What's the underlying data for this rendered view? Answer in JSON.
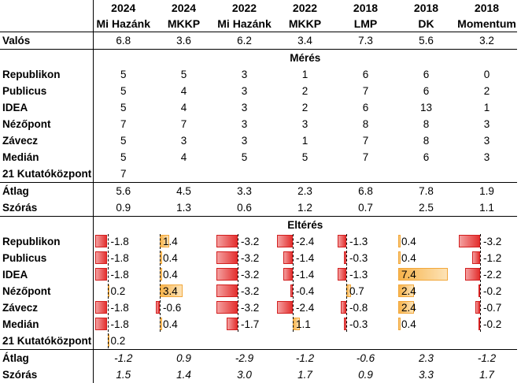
{
  "columns": [
    {
      "year": "2024",
      "party": "Mi Hazánk"
    },
    {
      "year": "2024",
      "party": "MKKP"
    },
    {
      "year": "2022",
      "party": "Mi Hazánk"
    },
    {
      "year": "2022",
      "party": "MKKP"
    },
    {
      "year": "2018",
      "party": "LMP"
    },
    {
      "year": "2018",
      "party": "DK"
    },
    {
      "year": "2018",
      "party": "Momentum"
    }
  ],
  "actual": {
    "label": "Valós",
    "values": [
      "6.8",
      "3.6",
      "6.2",
      "3.4",
      "7.3",
      "5.6",
      "3.2"
    ]
  },
  "measure_section": {
    "title": "Mérés",
    "rows": [
      {
        "label": "Republikon",
        "values": [
          "5",
          "5",
          "3",
          "1",
          "6",
          "6",
          "0"
        ]
      },
      {
        "label": "Publicus",
        "values": [
          "5",
          "4",
          "3",
          "2",
          "7",
          "6",
          "2"
        ]
      },
      {
        "label": "IDEA",
        "values": [
          "5",
          "4",
          "3",
          "2",
          "6",
          "13",
          "1"
        ]
      },
      {
        "label": "Nézőpont",
        "values": [
          "7",
          "7",
          "3",
          "3",
          "8",
          "8",
          "3"
        ]
      },
      {
        "label": "Závecz",
        "values": [
          "5",
          "3",
          "3",
          "1",
          "7",
          "8",
          "3"
        ]
      },
      {
        "label": "Medián",
        "values": [
          "5",
          "4",
          "5",
          "5",
          "7",
          "6",
          "3"
        ]
      },
      {
        "label": "21 Kutatóközpont",
        "values": [
          "7",
          "",
          "",
          "",
          "",
          "",
          ""
        ]
      }
    ],
    "mean": {
      "label": "Átlag",
      "values": [
        "5.6",
        "4.5",
        "3.3",
        "2.3",
        "6.8",
        "7.8",
        "1.9"
      ]
    },
    "std": {
      "label": "Szórás",
      "values": [
        "0.9",
        "1.3",
        "0.6",
        "1.2",
        "0.7",
        "2.5",
        "1.1"
      ]
    }
  },
  "deviation_section": {
    "title": "Eltérés",
    "rows": [
      {
        "label": "Republikon",
        "values": [
          "-1.8",
          "1.4",
          "-3.2",
          "-2.4",
          "-1.3",
          "0.4",
          "-3.2"
        ]
      },
      {
        "label": "Publicus",
        "values": [
          "-1.8",
          "0.4",
          "-3.2",
          "-1.4",
          "-0.3",
          "0.4",
          "-1.2"
        ]
      },
      {
        "label": "IDEA",
        "values": [
          "-1.8",
          "0.4",
          "-3.2",
          "-1.4",
          "-1.3",
          "7.4",
          "-2.2"
        ]
      },
      {
        "label": "Nézőpont",
        "values": [
          "0.2",
          "3.4",
          "-3.2",
          "-0.4",
          "0.7",
          "2.4",
          "-0.2"
        ]
      },
      {
        "label": "Závecz",
        "values": [
          "-1.8",
          "-0.6",
          "-3.2",
          "-2.4",
          "-0.8",
          "2.4",
          "-0.7"
        ]
      },
      {
        "label": "Medián",
        "values": [
          "-1.8",
          "0.4",
          "-1.7",
          "1.1",
          "-0.3",
          "0.4",
          "-0.2"
        ]
      },
      {
        "label": "21 Kutatóközpont",
        "values": [
          "0.2",
          "",
          "",
          "",
          "",
          "",
          ""
        ]
      }
    ],
    "mean": {
      "label": "Átlag",
      "values": [
        "-1.2",
        "0.9",
        "-2.9",
        "-1.2",
        "-0.6",
        "2.3",
        "-1.2"
      ]
    },
    "std": {
      "label": "Szórás",
      "values": [
        "1.5",
        "1.4",
        "3.0",
        "1.7",
        "0.9",
        "3.3",
        "1.7"
      ]
    }
  },
  "colors": {
    "negative_bar": "#e3302f",
    "positive_bar": "#f7b34b"
  }
}
